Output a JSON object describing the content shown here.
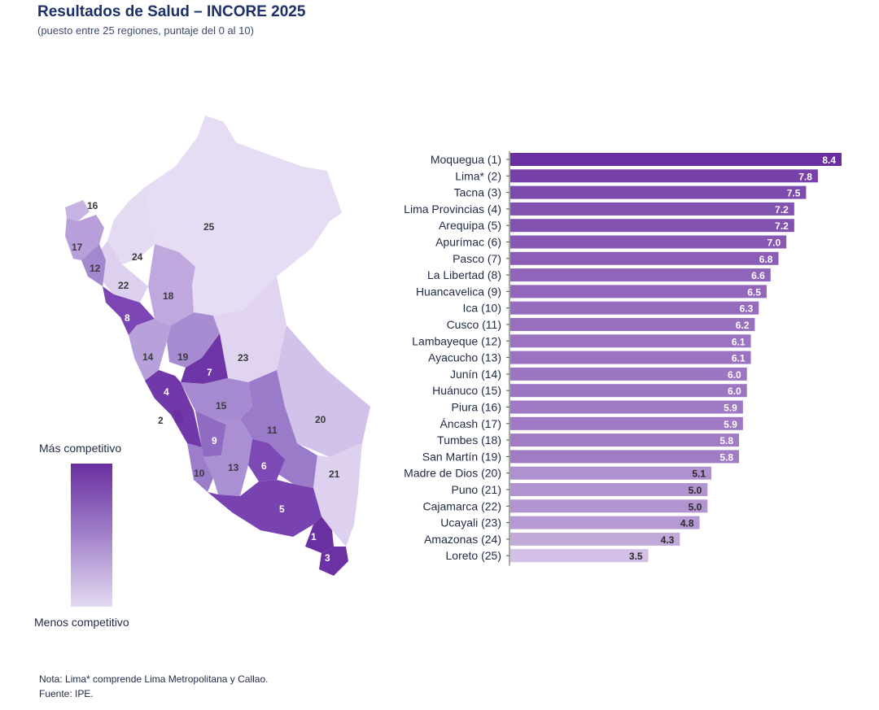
{
  "header": {
    "title": "Resultados de Salud – INCORE 2025",
    "subtitle": "(puesto entre 25 regiones, puntaje del 0 al 10)"
  },
  "legend": {
    "top_label": "Más competitivo",
    "bottom_label": "Menos competitivo"
  },
  "map": {
    "region_labels": [
      "16",
      "17",
      "12",
      "24",
      "25",
      "22",
      "18",
      "8",
      "14",
      "19",
      "23",
      "7",
      "4",
      "2",
      "15",
      "11",
      "20",
      "9",
      "13",
      "6",
      "10",
      "21",
      "5",
      "1",
      "3"
    ]
  },
  "chart_data": {
    "type": "bar",
    "orientation": "horizontal",
    "categories": [
      "Moquegua (1)",
      "Lima* (2)",
      "Tacna (3)",
      "Lima Provincias (4)",
      "Arequipa (5)",
      "Apurímac (6)",
      "Pasco (7)",
      "La Libertad (8)",
      "Huancavelica (9)",
      "Ica (10)",
      "Cusco (11)",
      "Lambayeque (12)",
      "Ayacucho (13)",
      "Junín (14)",
      "Huánuco (15)",
      "Piura (16)",
      "Áncash (17)",
      "Tumbes (18)",
      "San Martín (19)",
      "Madre de Dios (20)",
      "Puno (21)",
      "Cajamarca (22)",
      "Ucayali (23)",
      "Amazonas (24)",
      "Loreto (25)"
    ],
    "values": [
      8.4,
      7.8,
      7.5,
      7.2,
      7.2,
      7.0,
      6.8,
      6.6,
      6.5,
      6.3,
      6.2,
      6.1,
      6.1,
      6.0,
      6.0,
      5.9,
      5.9,
      5.8,
      5.8,
      5.1,
      5.0,
      5.0,
      4.8,
      4.3,
      3.5
    ],
    "value_labels": [
      "8.4",
      "7.8",
      "7.5",
      "7.2",
      "7.2",
      "7.0",
      "6.8",
      "6.6",
      "6.5",
      "6.3",
      "6.2",
      "6.1",
      "6.1",
      "6.0",
      "6.0",
      "5.9",
      "5.9",
      "5.8",
      "5.8",
      "5.1",
      "5.0",
      "5.0",
      "4.8",
      "4.3",
      "3.5"
    ],
    "xlim": [
      0,
      8.4
    ],
    "color_high": "#6a2fa0",
    "color_low": "#e4daf2"
  },
  "footer": {
    "note": "Nota: Lima* comprende Lima Metropolitana y Callao.",
    "source": "Fuente: IPE."
  }
}
